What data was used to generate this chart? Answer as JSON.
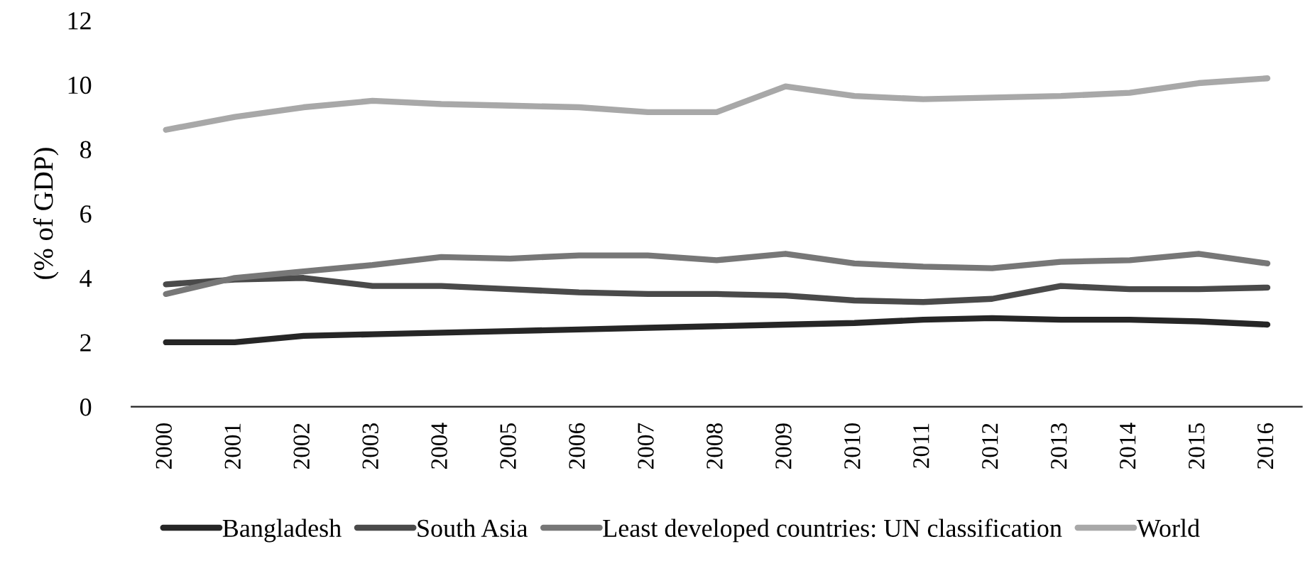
{
  "chart_data": {
    "type": "line",
    "ylabel": "(% of GDP)",
    "categories": [
      "2000",
      "2001",
      "2002",
      "2003",
      "2004",
      "2005",
      "2006",
      "2007",
      "2008",
      "2009",
      "2010",
      "2011",
      "2012",
      "2013",
      "2014",
      "2015",
      "2016"
    ],
    "series": [
      {
        "name": "Bangladesh",
        "color": "#262626",
        "values": [
          2.0,
          2.0,
          2.2,
          2.25,
          2.3,
          2.35,
          2.4,
          2.45,
          2.5,
          2.55,
          2.6,
          2.7,
          2.75,
          2.7,
          2.7,
          2.65,
          2.55
        ]
      },
      {
        "name": "South Asia",
        "color": "#4a4a4a",
        "values": [
          3.8,
          3.95,
          4.0,
          3.75,
          3.75,
          3.65,
          3.55,
          3.5,
          3.5,
          3.45,
          3.3,
          3.25,
          3.35,
          3.75,
          3.65,
          3.65,
          3.7
        ]
      },
      {
        "name": "Least developed countries: UN classification",
        "color": "#777777",
        "values": [
          3.5,
          4.0,
          4.2,
          4.4,
          4.65,
          4.6,
          4.7,
          4.7,
          4.55,
          4.75,
          4.45,
          4.35,
          4.3,
          4.5,
          4.55,
          4.75,
          4.45
        ]
      },
      {
        "name": "World",
        "color": "#a8a8a8",
        "values": [
          8.6,
          9.0,
          9.3,
          9.5,
          9.4,
          9.35,
          9.3,
          9.15,
          9.15,
          9.95,
          9.65,
          9.55,
          9.6,
          9.65,
          9.75,
          10.05,
          10.2
        ]
      }
    ],
    "ylim": [
      0,
      12
    ],
    "yticks": [
      0,
      2,
      4,
      6,
      8,
      10,
      12
    ],
    "grid": false,
    "legend": "bottom",
    "marker": "none",
    "line_style": "solid"
  }
}
